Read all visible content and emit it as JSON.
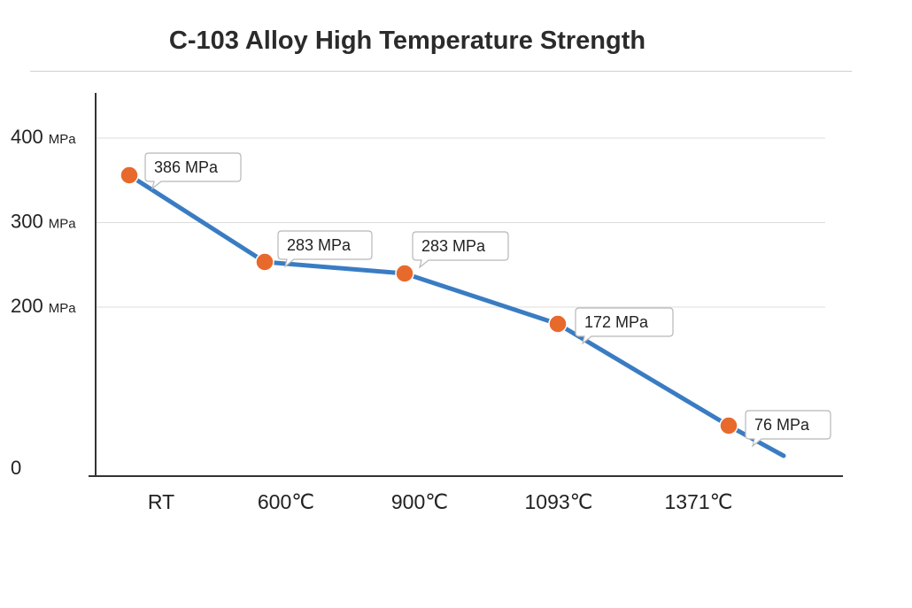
{
  "chart_data": {
    "type": "line",
    "title": "C-103 Alloy High Temperature Strength",
    "xlabel": "",
    "ylabel": "",
    "categories": [
      "RT",
      "600℃",
      "900℃",
      "1093℃",
      "1371℃"
    ],
    "y_ticks": [
      {
        "value": 0,
        "label": "0",
        "unit": ""
      },
      {
        "value": 200,
        "label": "200",
        "unit": "MPa"
      },
      {
        "value": 300,
        "label": "300",
        "unit": "MPa"
      },
      {
        "value": 400,
        "label": "400",
        "unit": "MPa"
      }
    ],
    "series": [
      {
        "values": [
          386,
          283,
          283,
          172,
          76
        ],
        "data_labels": [
          "386 MPa",
          "283 MPa",
          "283 MPa",
          "172 MPa",
          "76 MPa"
        ]
      }
    ],
    "ylim": [
      0,
      440
    ],
    "grid": true,
    "legend": "none",
    "colors": {
      "line": "#3a7cc3",
      "marker": "#e8692c",
      "grid": "#dddddd",
      "axis": "#333333"
    }
  }
}
